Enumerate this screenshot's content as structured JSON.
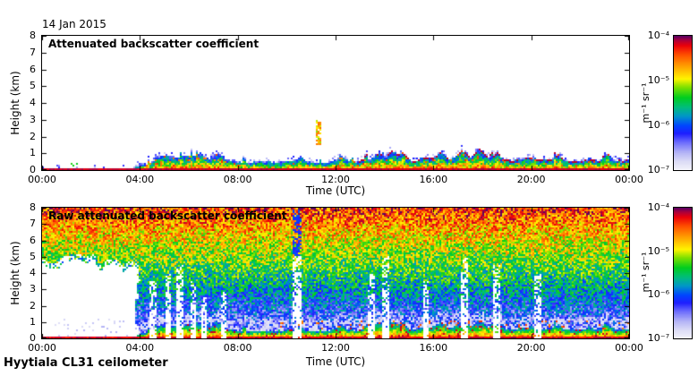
{
  "figure": {
    "date_label": "14 Jan 2015",
    "footer_label": "Hyytiala CL31 ceilometer",
    "background": "#ffffff"
  },
  "colorbar": {
    "ticks": [
      "10⁻⁴",
      "10⁻⁵",
      "10⁻⁶",
      "10⁻⁷"
    ],
    "tick_fractions_from_top": [
      0,
      0.3333,
      0.6667,
      1
    ],
    "unit_label": "m⁻¹ sr⁻¹",
    "value_range": [
      "1e-7",
      "1e-4"
    ],
    "gradient_stops": [
      [
        0.0,
        "#f2f2fa"
      ],
      [
        0.06,
        "#dcdcf6"
      ],
      [
        0.13,
        "#b2b2f6"
      ],
      [
        0.2,
        "#7070fc"
      ],
      [
        0.27,
        "#1e1eff"
      ],
      [
        0.33,
        "#0046ff"
      ],
      [
        0.4,
        "#0096c8"
      ],
      [
        0.47,
        "#00be78"
      ],
      [
        0.54,
        "#00cd1e"
      ],
      [
        0.62,
        "#82e100"
      ],
      [
        0.68,
        "#fff500"
      ],
      [
        0.77,
        "#ffa500"
      ],
      [
        0.86,
        "#ff5000"
      ],
      [
        0.93,
        "#eb000a"
      ],
      [
        0.97,
        "#aa003c"
      ],
      [
        1.0,
        "#5c0060"
      ]
    ]
  },
  "chart_data": [
    {
      "type": "heatmap",
      "title": "Attenuated backscatter coefficient",
      "xlabel": "Time (UTC)",
      "ylabel": "Height (km)",
      "x_tick_labels": [
        "00:00",
        "04:00",
        "08:00",
        "12:00",
        "16:00",
        "20:00",
        "00:00"
      ],
      "y_tick_labels": [
        "0",
        "1",
        "2",
        "3",
        "4",
        "5",
        "6",
        "7",
        "8"
      ],
      "x_range_hours": [
        0,
        24
      ],
      "ylim_km": [
        0,
        8
      ],
      "background_value": "white (below detection)",
      "features": {
        "seed": 20150114,
        "ground_line_km": 0.08,
        "boundary_layer_profile": [
          [
            0.0,
            0.1
          ],
          [
            0.155,
            0.1
          ],
          [
            0.19,
            0.55
          ],
          [
            0.21,
            0.85
          ],
          [
            0.25,
            0.75
          ],
          [
            0.3,
            0.6
          ],
          [
            0.36,
            0.45
          ],
          [
            0.42,
            0.5
          ],
          [
            0.5,
            0.55
          ],
          [
            0.55,
            0.58
          ],
          [
            0.6,
            0.62
          ],
          [
            0.66,
            0.62
          ],
          [
            0.72,
            0.68
          ],
          [
            0.78,
            0.65
          ],
          [
            0.85,
            0.6
          ],
          [
            0.93,
            0.62
          ],
          [
            1.0,
            0.58
          ]
        ],
        "bumps": [
          [
            0.27,
            0.006,
            0.3
          ],
          [
            0.3,
            0.008,
            0.35
          ],
          [
            0.44,
            0.005,
            0.25
          ],
          [
            0.51,
            0.006,
            0.3
          ],
          [
            0.575,
            0.008,
            0.4
          ],
          [
            0.595,
            0.01,
            0.5
          ],
          [
            0.615,
            0.008,
            0.45
          ],
          [
            0.68,
            0.008,
            0.35
          ],
          [
            0.715,
            0.012,
            0.5
          ],
          [
            0.745,
            0.01,
            0.55
          ],
          [
            0.775,
            0.007,
            0.35
          ],
          [
            0.88,
            0.006,
            0.3
          ],
          [
            0.96,
            0.007,
            0.35
          ]
        ],
        "elevated_plume": {
          "t": 0.472,
          "half_width": 0.005,
          "y0_km": 1.5,
          "y1_km": 2.95
        },
        "dark_cloud_top_after_t": 0.54,
        "flat_thin_layer_until_t": 0.155
      }
    },
    {
      "type": "heatmap",
      "title": "Raw attenuated backscatter coefficient",
      "xlabel": "Time (UTC)",
      "ylabel": "Height (km)",
      "x_tick_labels": [
        "00:00",
        "04:00",
        "08:00",
        "12:00",
        "16:00",
        "20:00",
        "00:00"
      ],
      "y_tick_labels": [
        "0",
        "1",
        "2",
        "3",
        "4",
        "5",
        "6",
        "7",
        "8"
      ],
      "x_range_hours": [
        0,
        24
      ],
      "ylim_km": [
        0,
        8
      ],
      "background_value": "range-amplified noise: red at 8 km grading to pale blue near ground",
      "features": {
        "seed": 31201514,
        "noise_mean_base": 0.1,
        "noise_mean_gain": 0.78,
        "noise_mean_exponent": 0.9,
        "noise_amplitude": 0.34,
        "white_blob": {
          "t_end": 0.168,
          "top_km": 4.8,
          "jaggedness": 0.5
        },
        "white_streaks": [
          {
            "t": 0.19,
            "half_width": 0.006,
            "top_km": 3.5
          },
          {
            "t": 0.215,
            "half_width": 0.005,
            "top_km": 4.0
          },
          {
            "t": 0.235,
            "half_width": 0.006,
            "top_km": 4.5
          },
          {
            "t": 0.258,
            "half_width": 0.005,
            "top_km": 3.5
          },
          {
            "t": 0.275,
            "half_width": 0.004,
            "top_km": 2.5
          },
          {
            "t": 0.31,
            "half_width": 0.005,
            "top_km": 3.0
          },
          {
            "t": 0.435,
            "half_width": 0.008,
            "top_km": 8.2
          },
          {
            "t": 0.56,
            "half_width": 0.006,
            "top_km": 4.0
          },
          {
            "t": 0.585,
            "half_width": 0.007,
            "top_km": 5.0
          },
          {
            "t": 0.655,
            "half_width": 0.005,
            "top_km": 3.5
          },
          {
            "t": 0.72,
            "half_width": 0.007,
            "top_km": 5.0
          },
          {
            "t": 0.775,
            "half_width": 0.006,
            "top_km": 4.5
          },
          {
            "t": 0.845,
            "half_width": 0.006,
            "top_km": 4.0
          }
        ],
        "ground_line_km": 0.1,
        "near_ground_white_band_km": 0.7,
        "elevated_red_dots_band_km": [
          0.55,
          1.15
        ]
      }
    }
  ]
}
